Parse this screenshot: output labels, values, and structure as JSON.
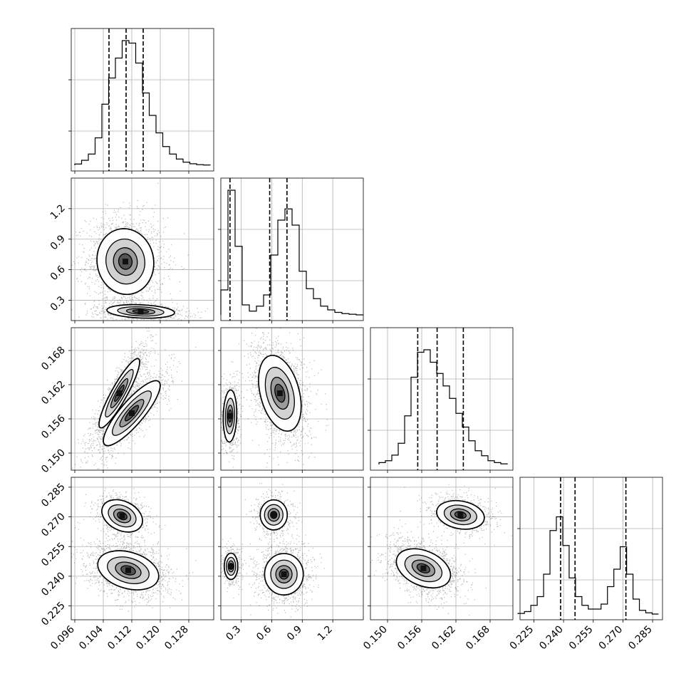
{
  "chart_data": {
    "type": "corner",
    "dimensions": 4,
    "colors": {
      "line": "#000000",
      "grid": "#b0b0b0",
      "density_dark": "#000000",
      "density_light": "#ffffff"
    },
    "parameters": [
      {
        "index": 0,
        "range": [
          0.095,
          0.135
        ],
        "ticks": [
          "0.096",
          "0.104",
          "0.112",
          "0.120",
          "0.128"
        ],
        "quantiles": [
          0.1056,
          0.1104,
          0.1152
        ]
      },
      {
        "index": 1,
        "range": [
          0.1,
          1.5
        ],
        "ticks": [
          "0.3",
          "0.6",
          "0.9",
          "1.2"
        ],
        "quantiles": [
          0.19,
          0.58,
          0.75
        ]
      },
      {
        "index": 2,
        "range": [
          0.147,
          0.172
        ],
        "ticks": [
          "0.150",
          "0.156",
          "0.162",
          "0.168"
        ],
        "quantiles": [
          0.1553,
          0.1587,
          0.1633
        ]
      },
      {
        "index": 3,
        "range": [
          0.218,
          0.29
        ],
        "ticks": [
          "0.225",
          "0.240",
          "0.255",
          "0.270",
          "0.285"
        ],
        "quantiles": [
          0.2385,
          0.2458,
          0.2715
        ]
      }
    ],
    "histograms": [
      {
        "param": 0,
        "bins": 20,
        "range": [
          0.096,
          0.134
        ],
        "counts": [
          0.01,
          0.04,
          0.09,
          0.22,
          0.49,
          0.7,
          0.86,
          1.0,
          0.98,
          0.82,
          0.58,
          0.4,
          0.26,
          0.15,
          0.09,
          0.05,
          0.025,
          0.012,
          0.005,
          0.002
        ]
      },
      {
        "param": 1,
        "bins": 20,
        "range": [
          0.1,
          1.5
        ],
        "counts": [
          0.2,
          1.0,
          0.55,
          0.08,
          0.03,
          0.07,
          0.16,
          0.48,
          0.76,
          0.85,
          0.72,
          0.35,
          0.21,
          0.13,
          0.07,
          0.04,
          0.02,
          0.01,
          0.005,
          0.0
        ]
      },
      {
        "param": 2,
        "bins": 20,
        "range": [
          0.1485,
          0.171
        ],
        "counts": [
          0.015,
          0.03,
          0.075,
          0.17,
          0.39,
          0.7,
          0.9,
          0.92,
          0.82,
          0.73,
          0.63,
          0.53,
          0.41,
          0.3,
          0.19,
          0.11,
          0.07,
          0.03,
          0.015,
          0.005
        ]
      },
      {
        "param": 3,
        "bins": 22,
        "range": [
          0.217,
          0.288
        ],
        "counts": [
          0.005,
          0.02,
          0.07,
          0.14,
          0.32,
          0.67,
          0.78,
          0.55,
          0.29,
          0.14,
          0.07,
          0.04,
          0.04,
          0.08,
          0.22,
          0.36,
          0.54,
          0.32,
          0.12,
          0.03,
          0.01,
          0.0
        ]
      }
    ],
    "scatter_panels": [
      {
        "x_param": 0,
        "y_param": 1,
        "clusters": [
          {
            "mx": 0.1102,
            "my": 0.68,
            "sx": 0.0042,
            "sy": 0.17,
            "rho": -0.05,
            "w": 0.7
          },
          {
            "mx": 0.1145,
            "my": 0.19,
            "sx": 0.005,
            "sy": 0.035,
            "rho": -0.2,
            "w": 0.3
          }
        ]
      },
      {
        "x_param": 0,
        "y_param": 2,
        "clusters": [
          {
            "mx": 0.1085,
            "my": 0.1605,
            "sx": 0.003,
            "sy": 0.0032,
            "rho": 0.9,
            "w": 0.55
          },
          {
            "mx": 0.112,
            "my": 0.157,
            "sx": 0.0042,
            "sy": 0.003,
            "rho": 0.85,
            "w": 0.45
          }
        ]
      },
      {
        "x_param": 1,
        "y_param": 2,
        "clusters": [
          {
            "mx": 0.19,
            "my": 0.1565,
            "sx": 0.035,
            "sy": 0.0024,
            "rho": 0.1,
            "w": 0.3
          },
          {
            "mx": 0.68,
            "my": 0.1605,
            "sx": 0.11,
            "sy": 0.0035,
            "rho": -0.35,
            "w": 0.7
          }
        ]
      },
      {
        "x_param": 0,
        "y_param": 3,
        "clusters": [
          {
            "mx": 0.1093,
            "my": 0.2705,
            "sx": 0.003,
            "sy": 0.0043,
            "rho": -0.3,
            "w": 0.32
          },
          {
            "mx": 0.111,
            "my": 0.243,
            "sx": 0.0045,
            "sy": 0.0052,
            "rho": -0.3,
            "w": 0.68
          }
        ]
      },
      {
        "x_param": 1,
        "y_param": 3,
        "clusters": [
          {
            "mx": 0.62,
            "my": 0.271,
            "sx": 0.07,
            "sy": 0.004,
            "rho": 0.0,
            "w": 0.25
          },
          {
            "mx": 0.2,
            "my": 0.245,
            "sx": 0.035,
            "sy": 0.0035,
            "rho": 0.0,
            "w": 0.2
          },
          {
            "mx": 0.72,
            "my": 0.241,
            "sx": 0.1,
            "sy": 0.0055,
            "rho": 0.0,
            "w": 0.55
          }
        ]
      },
      {
        "x_param": 2,
        "y_param": 3,
        "clusters": [
          {
            "mx": 0.1628,
            "my": 0.271,
            "sx": 0.0022,
            "sy": 0.0038,
            "rho": -0.2,
            "w": 0.34
          },
          {
            "mx": 0.1563,
            "my": 0.244,
            "sx": 0.0025,
            "sy": 0.0052,
            "rho": -0.35,
            "w": 0.66
          }
        ]
      }
    ]
  }
}
